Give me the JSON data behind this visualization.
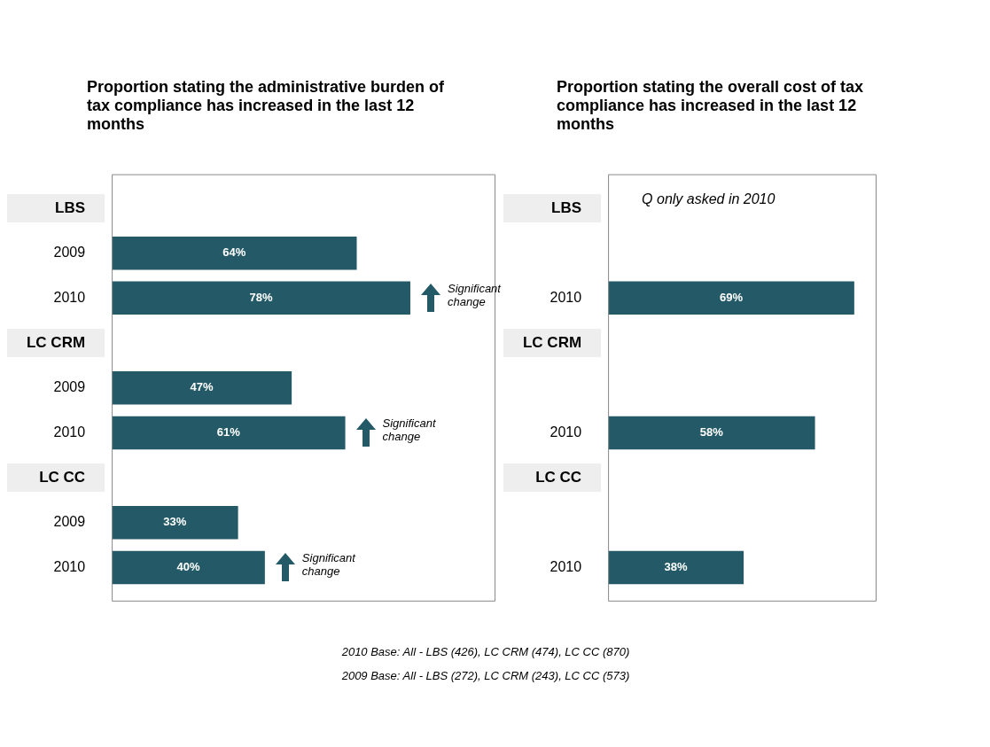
{
  "chart_data": [
    {
      "type": "bar",
      "orientation": "horizontal",
      "title": "Proportion stating the administrative burden of tax compliance  has increased in the last 12 months",
      "categories": [
        "LBS",
        "2009",
        "2010",
        "LC CRM",
        "2009",
        "2010",
        "LC CC",
        "2009",
        "2010"
      ],
      "values": [
        null,
        64,
        78,
        null,
        47,
        61,
        null,
        33,
        40
      ],
      "value_labels": [
        null,
        "64%",
        "78%",
        null,
        "47%",
        "61%",
        null,
        "33%",
        "40%"
      ],
      "color": "#245a67",
      "xlim": [
        0,
        100
      ],
      "tick_labels": "y",
      "annotations": [
        "Significant change",
        "Significant change",
        "Significant change",
        "2010 Base: All  - LBS (426), LC CRM (474), LC CC (870)",
        "2009 Base: All  - LBS (272), LC CRM (243), LC CC (573)"
      ]
    },
    {
      "type": "bar",
      "orientation": "horizontal",
      "title": "Proportion stating  the overall cost of tax compliance has increased in the last 12 months",
      "categories": [
        "LBS",
        null,
        "2010",
        "LC CRM",
        null,
        "2010",
        "LC CC",
        null,
        "2010"
      ],
      "values": [
        null,
        null,
        69,
        null,
        null,
        58,
        null,
        null,
        38
      ],
      "value_labels": [
        null,
        null,
        "69%",
        null,
        null,
        "58%",
        null,
        null,
        "38%"
      ],
      "color": "#245a67",
      "xlim": [
        0,
        75
      ],
      "tick_labels": "y",
      "annotations": [
        "Q only asked in 2010"
      ]
    }
  ]
}
